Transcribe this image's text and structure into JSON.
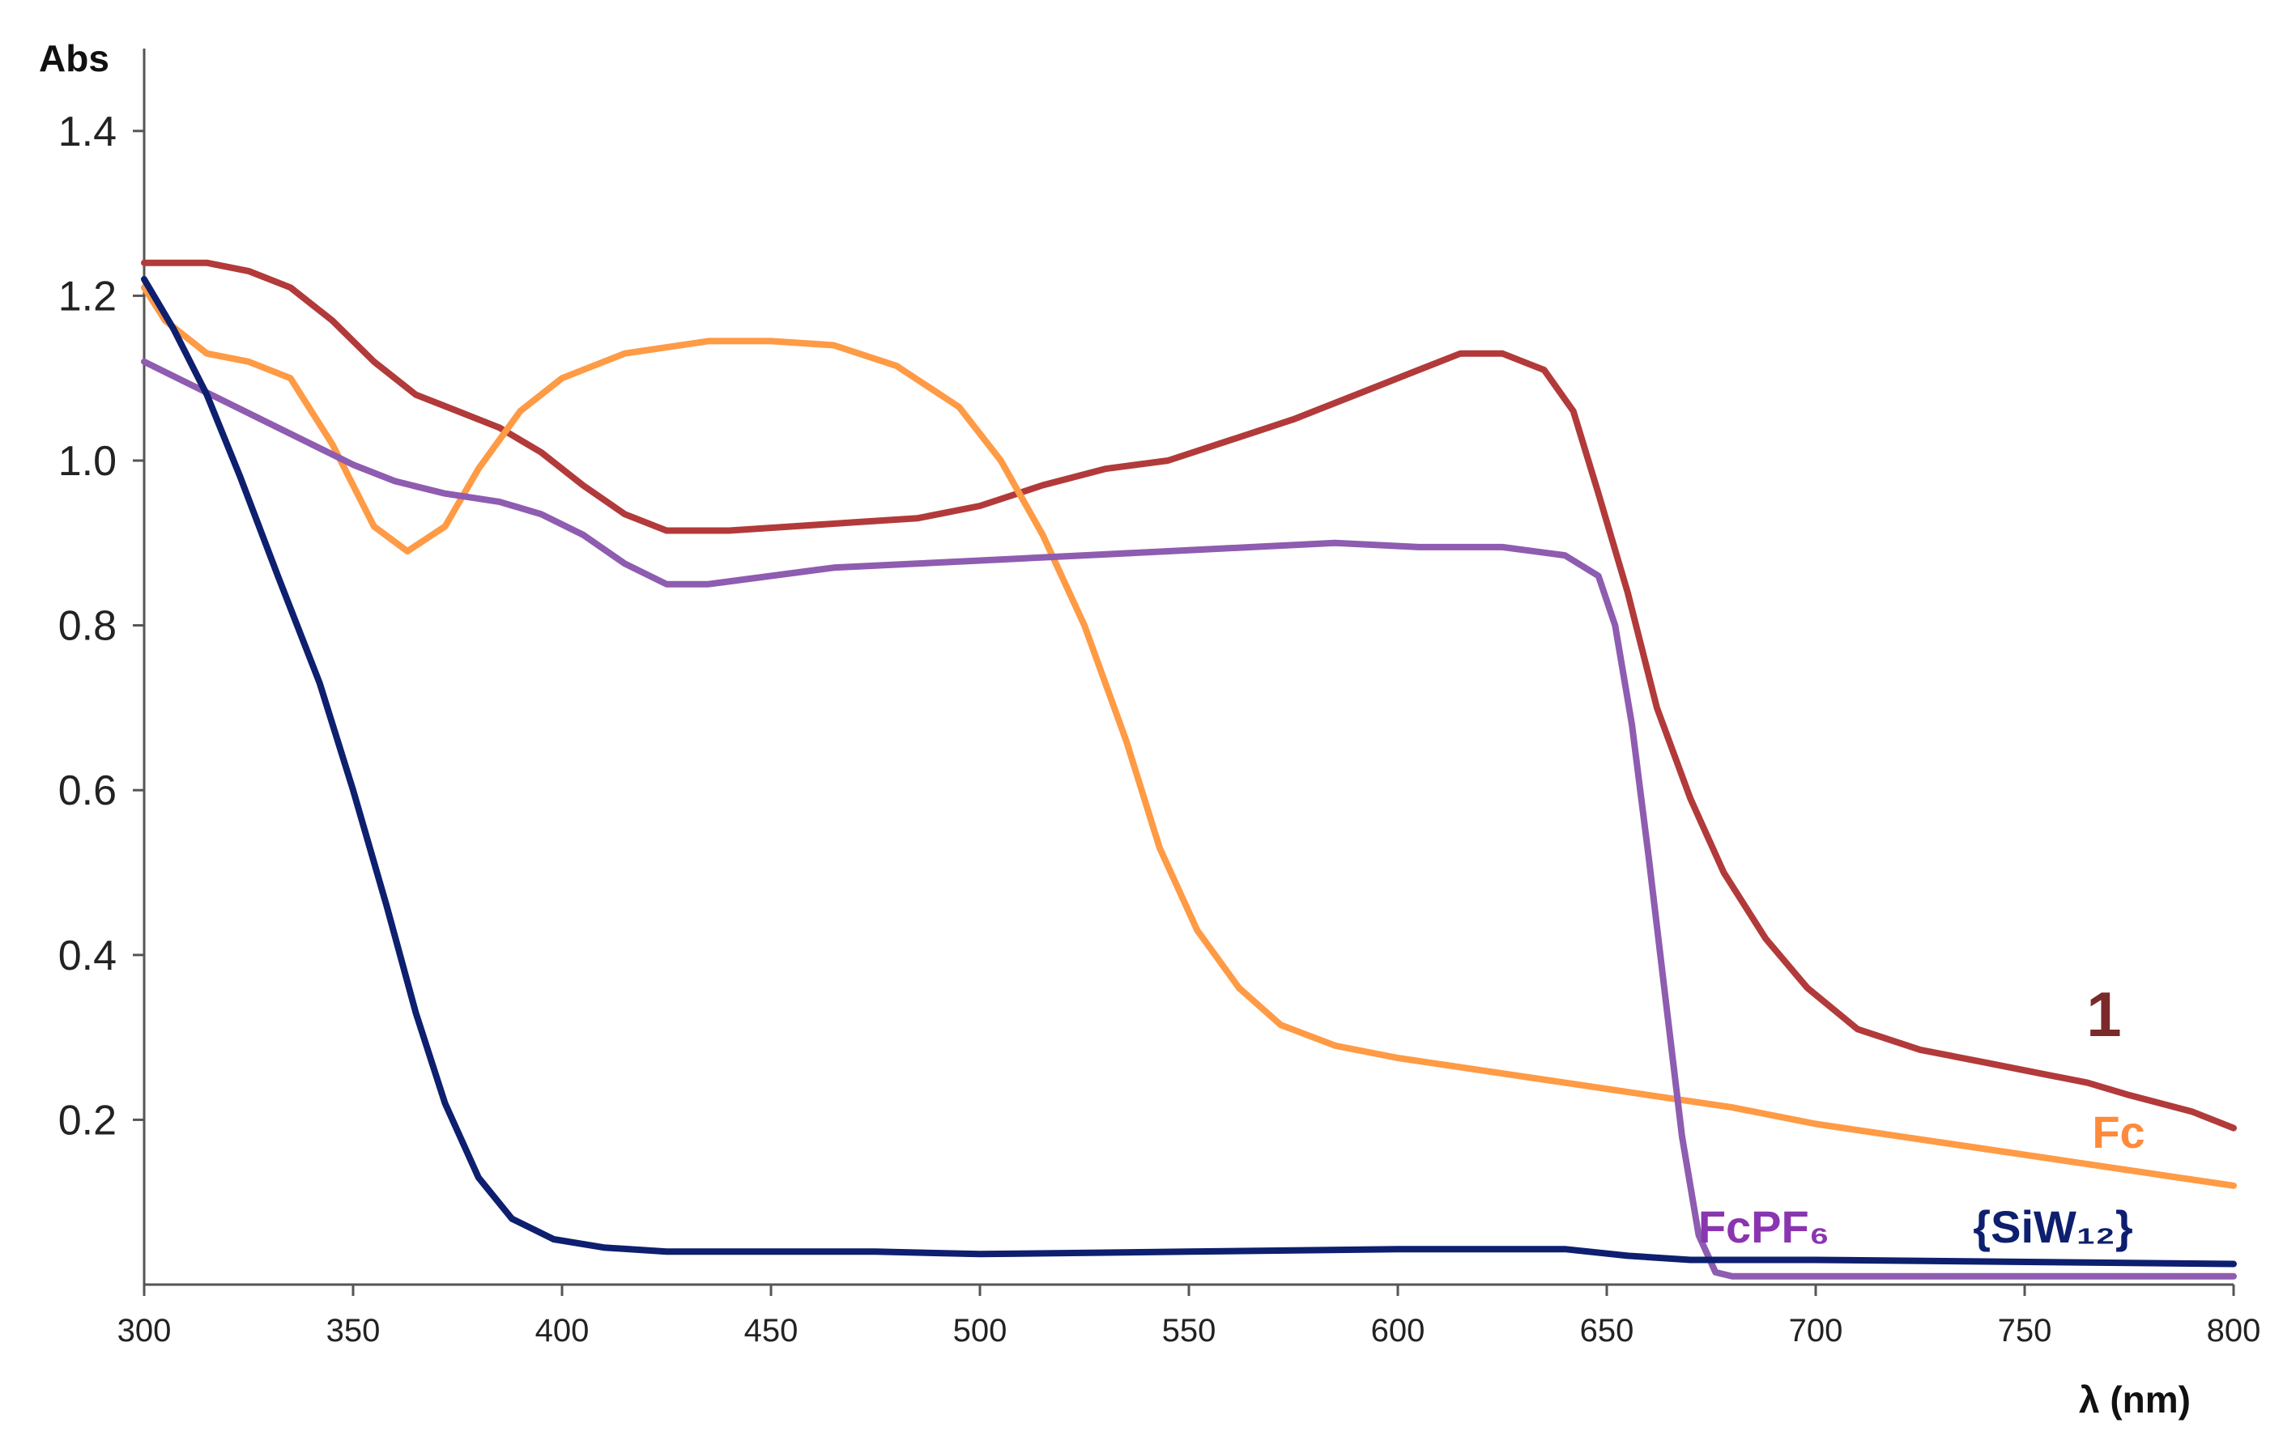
{
  "chart_data": {
    "type": "line",
    "ylabel": "Abs",
    "xlabel": "λ (nm)",
    "xlim": [
      300,
      800
    ],
    "ylim": [
      0,
      1.5
    ],
    "x_ticks": [
      "300",
      "350",
      "400",
      "450",
      "500",
      "550",
      "600",
      "650",
      "700",
      "750",
      "800"
    ],
    "y_ticks": [
      "0.2",
      "0.4",
      "0.6",
      "0.8",
      "1.0",
      "1.2",
      "1.4"
    ],
    "grid": false,
    "series": [
      {
        "name": "1",
        "color": "#B23A3A",
        "label_color": "#7A2A2A",
        "points": [
          [
            300,
            1.24
          ],
          [
            315,
            1.24
          ],
          [
            325,
            1.23
          ],
          [
            335,
            1.21
          ],
          [
            345,
            1.17
          ],
          [
            355,
            1.12
          ],
          [
            365,
            1.08
          ],
          [
            375,
            1.06
          ],
          [
            385,
            1.04
          ],
          [
            395,
            1.01
          ],
          [
            405,
            0.97
          ],
          [
            415,
            0.935
          ],
          [
            425,
            0.915
          ],
          [
            440,
            0.915
          ],
          [
            455,
            0.92
          ],
          [
            470,
            0.925
          ],
          [
            485,
            0.93
          ],
          [
            500,
            0.945
          ],
          [
            515,
            0.97
          ],
          [
            530,
            0.99
          ],
          [
            545,
            1.0
          ],
          [
            560,
            1.025
          ],
          [
            575,
            1.05
          ],
          [
            590,
            1.08
          ],
          [
            605,
            1.11
          ],
          [
            615,
            1.13
          ],
          [
            625,
            1.13
          ],
          [
            635,
            1.11
          ],
          [
            642,
            1.06
          ],
          [
            648,
            0.96
          ],
          [
            655,
            0.84
          ],
          [
            662,
            0.7
          ],
          [
            670,
            0.59
          ],
          [
            678,
            0.5
          ],
          [
            688,
            0.42
          ],
          [
            698,
            0.36
          ],
          [
            710,
            0.31
          ],
          [
            725,
            0.285
          ],
          [
            740,
            0.27
          ],
          [
            755,
            0.255
          ],
          [
            765,
            0.245
          ],
          [
            775,
            0.23
          ],
          [
            790,
            0.21
          ],
          [
            800,
            0.19
          ]
        ]
      },
      {
        "name": "Fc",
        "color": "#FF9A45",
        "label_color": "#FF8A3C",
        "points": [
          [
            300,
            1.21
          ],
          [
            305,
            1.17
          ],
          [
            315,
            1.13
          ],
          [
            325,
            1.12
          ],
          [
            335,
            1.1
          ],
          [
            345,
            1.02
          ],
          [
            355,
            0.92
          ],
          [
            363,
            0.89
          ],
          [
            372,
            0.92
          ],
          [
            380,
            0.99
          ],
          [
            390,
            1.06
          ],
          [
            400,
            1.1
          ],
          [
            415,
            1.13
          ],
          [
            435,
            1.145
          ],
          [
            450,
            1.145
          ],
          [
            465,
            1.14
          ],
          [
            480,
            1.115
          ],
          [
            495,
            1.065
          ],
          [
            505,
            1.0
          ],
          [
            515,
            0.91
          ],
          [
            525,
            0.8
          ],
          [
            535,
            0.66
          ],
          [
            543,
            0.53
          ],
          [
            552,
            0.43
          ],
          [
            562,
            0.36
          ],
          [
            572,
            0.315
          ],
          [
            585,
            0.29
          ],
          [
            600,
            0.275
          ],
          [
            620,
            0.26
          ],
          [
            640,
            0.245
          ],
          [
            660,
            0.23
          ],
          [
            680,
            0.215
          ],
          [
            700,
            0.195
          ],
          [
            720,
            0.18
          ],
          [
            740,
            0.165
          ],
          [
            760,
            0.15
          ],
          [
            780,
            0.135
          ],
          [
            800,
            0.12
          ]
        ]
      },
      {
        "name": "FcPF₆",
        "color": "#8E5CB0",
        "label_color": "#8A35B0",
        "points": [
          [
            300,
            1.12
          ],
          [
            310,
            1.095
          ],
          [
            320,
            1.07
          ],
          [
            330,
            1.045
          ],
          [
            340,
            1.02
          ],
          [
            350,
            0.995
          ],
          [
            360,
            0.975
          ],
          [
            372,
            0.96
          ],
          [
            385,
            0.95
          ],
          [
            395,
            0.935
          ],
          [
            405,
            0.91
          ],
          [
            415,
            0.875
          ],
          [
            425,
            0.85
          ],
          [
            435,
            0.85
          ],
          [
            450,
            0.86
          ],
          [
            465,
            0.87
          ],
          [
            485,
            0.875
          ],
          [
            505,
            0.88
          ],
          [
            525,
            0.885
          ],
          [
            545,
            0.89
          ],
          [
            565,
            0.895
          ],
          [
            585,
            0.9
          ],
          [
            605,
            0.895
          ],
          [
            625,
            0.895
          ],
          [
            640,
            0.885
          ],
          [
            648,
            0.86
          ],
          [
            652,
            0.8
          ],
          [
            656,
            0.68
          ],
          [
            660,
            0.52
          ],
          [
            664,
            0.35
          ],
          [
            668,
            0.18
          ],
          [
            672,
            0.06
          ],
          [
            676,
            0.015
          ],
          [
            680,
            0.01
          ],
          [
            700,
            0.01
          ],
          [
            800,
            0.01
          ]
        ]
      },
      {
        "name": "{SiW₁₂}",
        "color": "#0D1F6E",
        "label_color": "#0D1F6E",
        "points": [
          [
            300,
            1.22
          ],
          [
            307,
            1.16
          ],
          [
            315,
            1.08
          ],
          [
            323,
            0.98
          ],
          [
            332,
            0.86
          ],
          [
            342,
            0.73
          ],
          [
            350,
            0.6
          ],
          [
            358,
            0.46
          ],
          [
            365,
            0.33
          ],
          [
            372,
            0.22
          ],
          [
            380,
            0.13
          ],
          [
            388,
            0.08
          ],
          [
            398,
            0.055
          ],
          [
            410,
            0.045
          ],
          [
            425,
            0.04
          ],
          [
            450,
            0.04
          ],
          [
            475,
            0.04
          ],
          [
            500,
            0.037
          ],
          [
            550,
            0.04
          ],
          [
            600,
            0.043
          ],
          [
            640,
            0.043
          ],
          [
            655,
            0.035
          ],
          [
            670,
            0.03
          ],
          [
            700,
            0.03
          ],
          [
            800,
            0.025
          ]
        ]
      }
    ]
  }
}
